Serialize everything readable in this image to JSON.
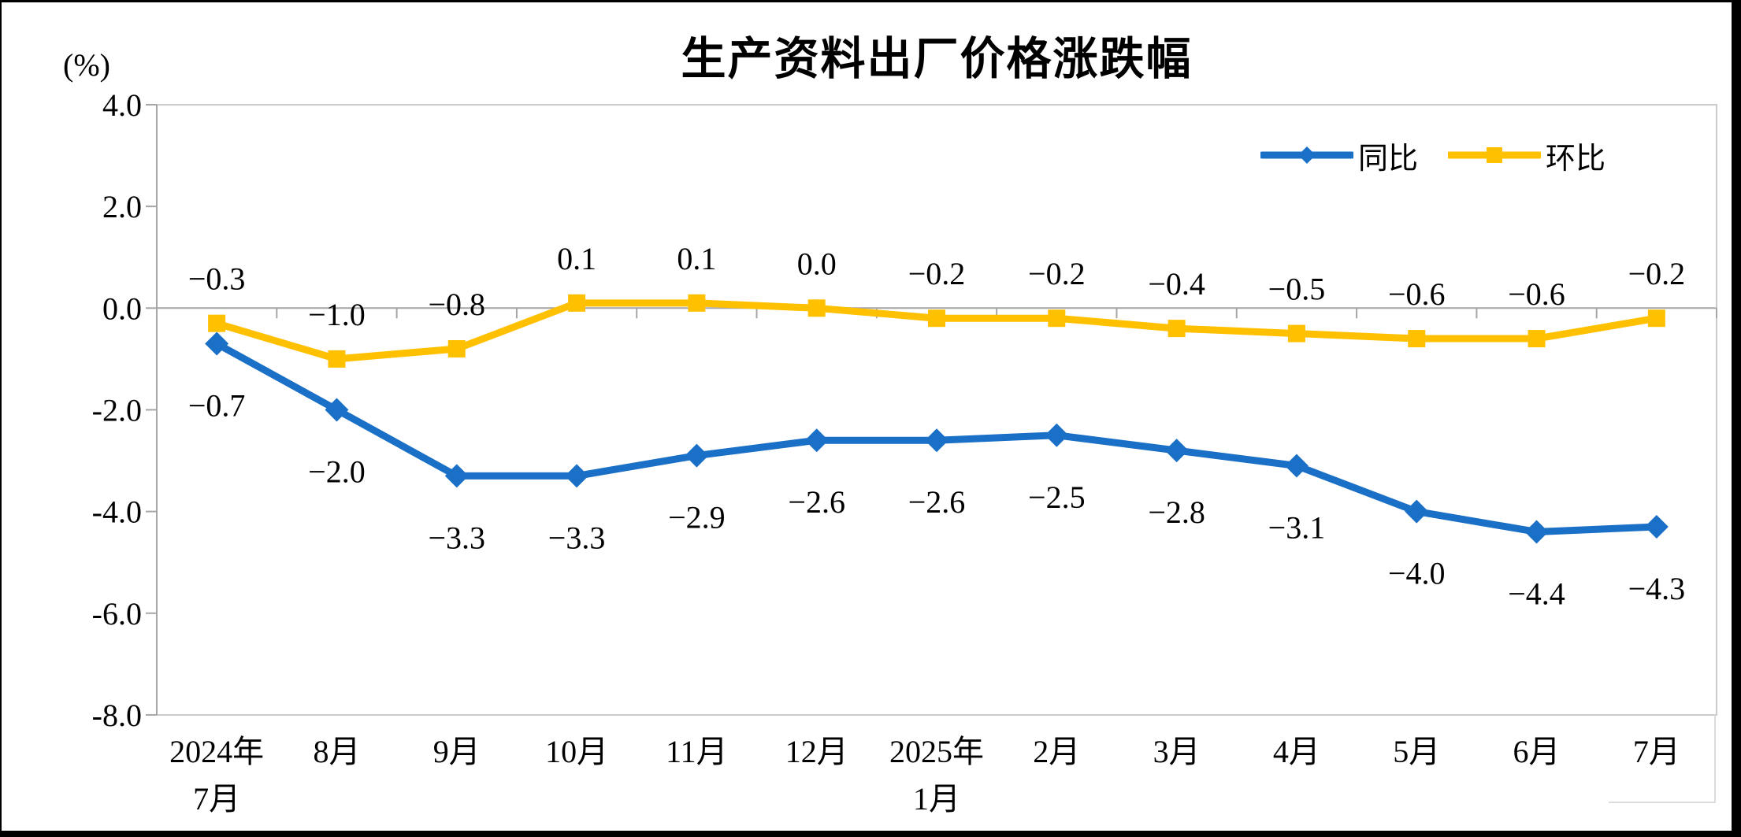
{
  "title": "生产资料出厂价格涨跌幅",
  "y_axis_unit": "(%)",
  "legend": [
    {
      "label": "同比",
      "color": "#1A6FC6",
      "marker": "diamond"
    },
    {
      "label": "环比",
      "color": "#FFC000",
      "marker": "square"
    }
  ],
  "y_ticks": [
    "4.0",
    "2.0",
    "0.0",
    "-2.0",
    "-4.0",
    "-6.0",
    "-8.0"
  ],
  "x_labels": [
    [
      "2024年",
      "7月"
    ],
    [
      "8月"
    ],
    [
      "9月"
    ],
    [
      "10月"
    ],
    [
      "11月"
    ],
    [
      "12月"
    ],
    [
      "2025年",
      "1月"
    ],
    [
      "2月"
    ],
    [
      "3月"
    ],
    [
      "4月"
    ],
    [
      "5月"
    ],
    [
      "6月"
    ],
    [
      "7月"
    ]
  ],
  "chart_data": {
    "type": "line",
    "title": "生产资料出厂价格涨跌幅",
    "ylabel": "(%)",
    "xlabel": "",
    "categories": [
      "2024年7月",
      "8月",
      "9月",
      "10月",
      "11月",
      "12月",
      "2025年1月",
      "2月",
      "3月",
      "4月",
      "5月",
      "6月",
      "7月"
    ],
    "series": [
      {
        "name": "同比",
        "color": "#1A6FC6",
        "marker": "diamond",
        "values": [
          -0.7,
          -2.0,
          -3.3,
          -3.3,
          -2.9,
          -2.6,
          -2.6,
          -2.5,
          -2.8,
          -3.1,
          -4.0,
          -4.4,
          -4.3
        ],
        "labels": [
          "−0.7",
          "−2.0",
          "−3.3",
          "−3.3",
          "−2.9",
          "−2.6",
          "−2.6",
          "−2.5",
          "−2.8",
          "−3.1",
          "−4.0",
          "−4.4",
          "−4.3"
        ],
        "label_position": "below"
      },
      {
        "name": "环比",
        "color": "#FFC000",
        "marker": "square",
        "values": [
          -0.3,
          -1.0,
          -0.8,
          0.1,
          0.1,
          0.0,
          -0.2,
          -0.2,
          -0.4,
          -0.5,
          -0.6,
          -0.6,
          -0.2
        ],
        "labels": [
          "−0.3",
          "−1.0",
          "−0.8",
          "0.1",
          "0.1",
          "0.0",
          "−0.2",
          "−0.2",
          "−0.4",
          "−0.5",
          "−0.6",
          "−0.6",
          "−0.2"
        ],
        "label_position": "above"
      }
    ],
    "ylim": [
      -8.0,
      4.0
    ],
    "y_tick_step": 2.0,
    "grid": false,
    "zero_axis_line": true,
    "legend_position": "top-right",
    "axis_color": "#A6A6A6",
    "border_color": "#CBCBCB",
    "label_color": "#000000"
  }
}
